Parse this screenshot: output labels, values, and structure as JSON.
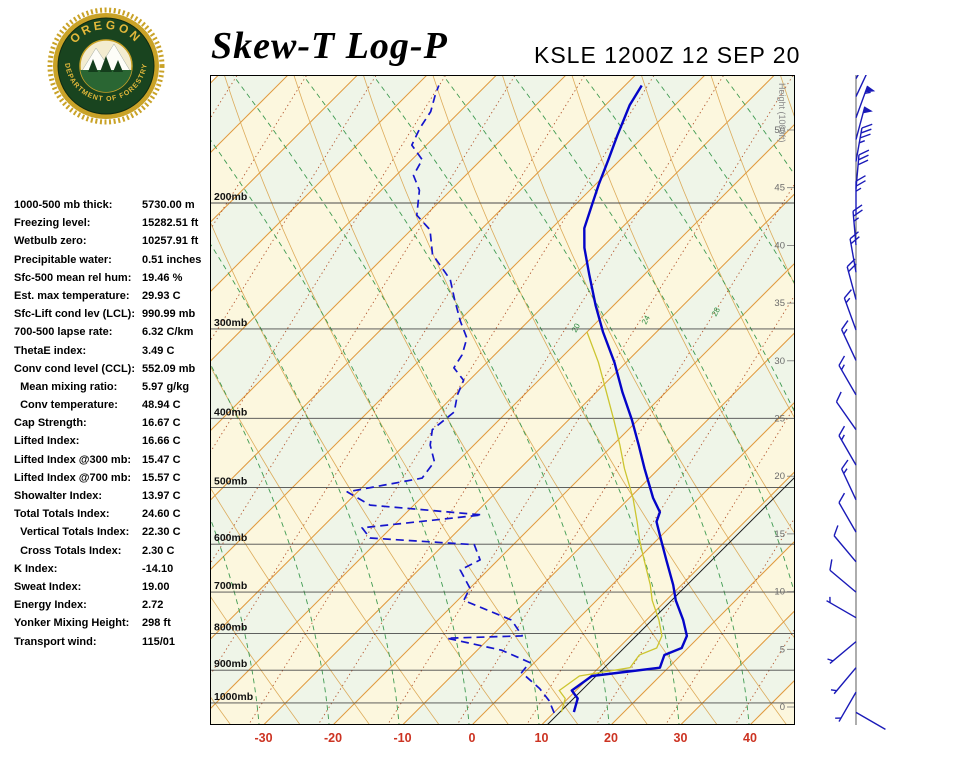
{
  "header": {
    "title": "Skew-T Log-P",
    "station_line": "KSLE 1200Z 12 SEP 20",
    "logo": {
      "org_top": "OREGON",
      "org_bottom": "DEPARTMENT OF FORESTRY"
    }
  },
  "stats": {
    "rows": [
      {
        "label": "1000-500 mb thick:",
        "value": "5730.00 m"
      },
      {
        "label": "Freezing level:",
        "value": "15282.51 ft"
      },
      {
        "label": "Wetbulb zero:",
        "value": "10257.91 ft"
      },
      {
        "label": "Precipitable water:",
        "value": "0.51 inches"
      },
      {
        "label": "Sfc-500 mean rel hum:",
        "value": "19.46 %"
      },
      {
        "label": "Est. max temperature:",
        "value": "29.93 C"
      },
      {
        "label": "Sfc-Lift cond lev (LCL):",
        "value": "990.99 mb"
      },
      {
        "label": "700-500 lapse rate:",
        "value": "6.32 C/km"
      },
      {
        "label": "ThetaE index:",
        "value": "3.49 C"
      },
      {
        "label": "Conv cond level (CCL):",
        "value": "552.09 mb"
      },
      {
        "label": "  Mean mixing ratio:",
        "value": "5.97 g/kg"
      },
      {
        "label": "  Conv temperature:",
        "value": "48.94 C"
      },
      {
        "label": "Cap Strength:",
        "value": "16.67 C"
      },
      {
        "label": "Lifted Index:",
        "value": "16.66 C"
      },
      {
        "label": "Lifted Index @300 mb:",
        "value": "15.47 C"
      },
      {
        "label": "Lifted Index @700 mb:",
        "value": "15.57 C"
      },
      {
        "label": "Showalter Index:",
        "value": "13.97 C"
      },
      {
        "label": "Total Totals Index:",
        "value": "24.60 C"
      },
      {
        "label": "  Vertical Totals Index:",
        "value": "22.30 C"
      },
      {
        "label": "  Cross Totals Index:",
        "value": "2.30 C"
      },
      {
        "label": "K Index:",
        "value": "-14.10"
      },
      {
        "label": "Sweat Index:",
        "value": "19.00"
      },
      {
        "label": "Energy Index:",
        "value": "2.72"
      },
      {
        "label": "Yonker Mixing Height:",
        "value": "298 ft"
      },
      {
        "label": "Transport wind:",
        "value": "115/01"
      }
    ]
  },
  "chart_data": {
    "type": "skewt-log-p",
    "pressure_ticks_mb": [
      200,
      300,
      400,
      500,
      600,
      700,
      800,
      900,
      1000
    ],
    "temp_axis_c": [
      -30,
      -20,
      -10,
      0,
      10,
      20,
      30,
      40
    ],
    "height_axis_label": "Height (1000ft)",
    "height_ticks_kft": [
      50,
      45,
      40,
      35,
      30,
      25,
      20,
      15,
      10,
      5,
      0
    ],
    "reference_line_c": 10.8,
    "moist_adiabat_labels": [
      "20",
      "24",
      "28"
    ],
    "series": [
      {
        "name": "temperature",
        "style": "solid",
        "points": [
          [
            1030,
            12.8
          ],
          [
            986,
            11.4
          ],
          [
            961,
            9.4
          ],
          [
            917,
            10.2
          ],
          [
            893,
            18.8
          ],
          [
            857,
            17.6
          ],
          [
            838,
            19.1
          ],
          [
            806,
            18.1
          ],
          [
            766,
            15.3
          ],
          [
            719,
            11.4
          ],
          [
            684,
            8.8
          ],
          [
            631,
            4.2
          ],
          [
            592,
            0.6
          ],
          [
            558,
            -2.7
          ],
          [
            541,
            -3.6
          ],
          [
            517,
            -6.6
          ],
          [
            470,
            -12.1
          ],
          [
            436,
            -16.3
          ],
          [
            402,
            -20.9
          ],
          [
            368,
            -26.2
          ],
          [
            334,
            -31.7
          ],
          [
            303,
            -37.7
          ],
          [
            278,
            -42.6
          ],
          [
            252,
            -47.9
          ],
          [
            231,
            -52.5
          ],
          [
            217,
            -55.3
          ],
          [
            201,
            -57.6
          ],
          [
            188,
            -59.6
          ],
          [
            174,
            -61.7
          ],
          [
            161,
            -63.9
          ],
          [
            146,
            -66.5
          ],
          [
            137,
            -67.6
          ]
        ]
      },
      {
        "name": "dewpoint",
        "style": "dashed",
        "points": [
          [
            1033,
            10.1
          ],
          [
            993,
            7.6
          ],
          [
            955,
            4.5
          ],
          [
            907,
            -0.4
          ],
          [
            878,
            -0.7
          ],
          [
            844,
            -6.5
          ],
          [
            812,
            -16.1
          ],
          [
            806,
            -5.6
          ],
          [
            766,
            -9.4
          ],
          [
            719,
            -19.1
          ],
          [
            691,
            -20.0
          ],
          [
            652,
            -24.0
          ],
          [
            631,
            -22.6
          ],
          [
            601,
            -25.6
          ],
          [
            588,
            -41.6
          ],
          [
            569,
            -44.2
          ],
          [
            546,
            -28.8
          ],
          [
            529,
            -46.3
          ],
          [
            507,
            -51.5
          ],
          [
            485,
            -42.7
          ],
          [
            460,
            -43.3
          ],
          [
            436,
            -46.3
          ],
          [
            415,
            -48.2
          ],
          [
            392,
            -47.6
          ],
          [
            371,
            -49.6
          ],
          [
            354,
            -50.8
          ],
          [
            340,
            -54.0
          ],
          [
            326,
            -54.7
          ],
          [
            309,
            -56.4
          ],
          [
            293,
            -59.7
          ],
          [
            273,
            -63.7
          ],
          [
            256,
            -67.2
          ],
          [
            236,
            -73.4
          ],
          [
            218,
            -77.3
          ],
          [
            208,
            -81.3
          ],
          [
            192,
            -84.5
          ],
          [
            183,
            -87.5
          ],
          [
            174,
            -88.5
          ],
          [
            166,
            -92.1
          ],
          [
            157,
            -93.4
          ],
          [
            149,
            -94.2
          ],
          [
            141,
            -96.0
          ],
          [
            137,
            -96.8
          ]
        ]
      },
      {
        "name": "wetbulb",
        "style": "solid",
        "points": [
          [
            1030,
            11.0
          ],
          [
            986,
            9.6
          ],
          [
            961,
            7.6
          ],
          [
            917,
            8.4
          ],
          [
            893,
            14.5
          ],
          [
            857,
            14.0
          ],
          [
            838,
            15.5
          ],
          [
            806,
            14.5
          ],
          [
            766,
            11.8
          ],
          [
            719,
            8.0
          ],
          [
            684,
            5.5
          ],
          [
            631,
            1.0
          ],
          [
            592,
            -2.5
          ],
          [
            558,
            -5.5
          ],
          [
            517,
            -9.5
          ],
          [
            470,
            -15.0
          ],
          [
            436,
            -19.0
          ],
          [
            402,
            -23.5
          ],
          [
            368,
            -28.5
          ],
          [
            334,
            -34.0
          ],
          [
            303,
            -40.0
          ]
        ]
      }
    ],
    "winds": [
      {
        "p": 134,
        "dir": 30,
        "spd": 65
      },
      {
        "p": 142,
        "dir": 25,
        "spd": 60
      },
      {
        "p": 152,
        "dir": 20,
        "spd": 55
      },
      {
        "p": 163,
        "dir": 15,
        "spd": 50
      },
      {
        "p": 175,
        "dir": 10,
        "spd": 35
      },
      {
        "p": 191,
        "dir": 5,
        "spd": 30
      },
      {
        "p": 208,
        "dir": 0,
        "spd": 25
      },
      {
        "p": 229,
        "dir": 355,
        "spd": 25
      },
      {
        "p": 250,
        "dir": 350,
        "spd": 20
      },
      {
        "p": 273,
        "dir": 345,
        "spd": 20
      },
      {
        "p": 301,
        "dir": 340,
        "spd": 15
      },
      {
        "p": 332,
        "dir": 335,
        "spd": 15
      },
      {
        "p": 371,
        "dir": 330,
        "spd": 15
      },
      {
        "p": 415,
        "dir": 325,
        "spd": 10
      },
      {
        "p": 465,
        "dir": 330,
        "spd": 15
      },
      {
        "p": 520,
        "dir": 335,
        "spd": 15
      },
      {
        "p": 577,
        "dir": 330,
        "spd": 10
      },
      {
        "p": 635,
        "dir": 320,
        "spd": 10
      },
      {
        "p": 700,
        "dir": 310,
        "spd": 10
      },
      {
        "p": 760,
        "dir": 300,
        "spd": 5
      },
      {
        "p": 821,
        "dir": 230,
        "spd": 5
      },
      {
        "p": 893,
        "dir": 220,
        "spd": 5
      },
      {
        "p": 966,
        "dir": 210,
        "spd": 5
      },
      {
        "p": 1031,
        "dir": 120,
        "spd": 2
      }
    ],
    "colors": {
      "trace_temp": "#0404C8",
      "trace_dewpoint": "#1515CC",
      "trace_wetbulb": "#CCC52F",
      "isotherm": "#E19A3E",
      "dry_adiabat": "#D9A34C",
      "moist_adiabat": "#3F9B51",
      "mixing_ratio": "#B2532B",
      "pressure_line": "#4A4A4A",
      "axis_temp_labels": "#CC3322",
      "wind_barbs": "#1A1AB8",
      "band_yellow": "#FCF7DE",
      "band_green": "#EFF5E8",
      "height_labels": "#6B6B6B"
    }
  }
}
